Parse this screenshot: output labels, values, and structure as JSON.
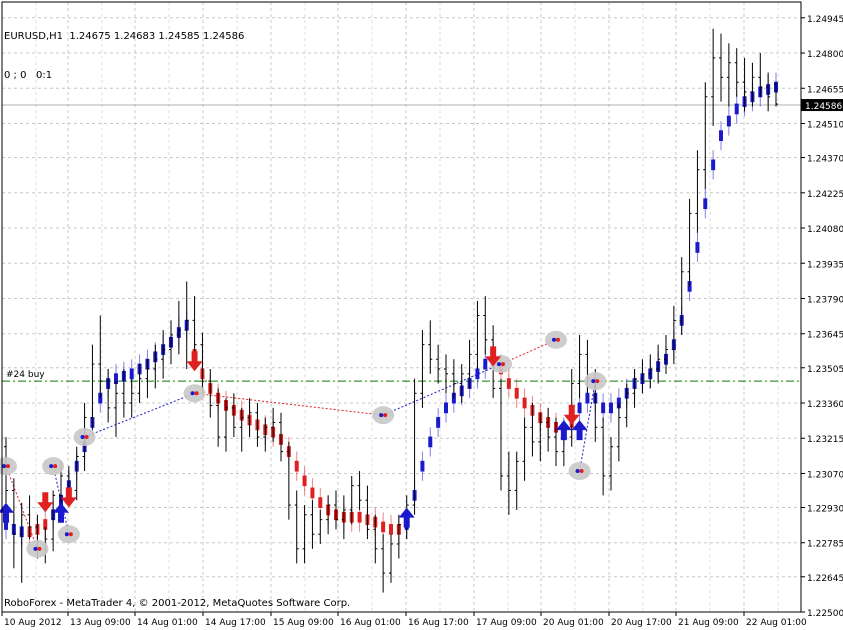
{
  "header": {
    "symbol_line": "EURUSD,H1  1.24675 1.24683 1.24585 1.24586",
    "indicator_line": "0 ; 0   0:1"
  },
  "footer": {
    "copyright": "RoboForex - MetaTrader 4, © 2001-2012, MetaQuotes Software Corp."
  },
  "chart_data": {
    "type": "candlestick-bars",
    "symbol": "EURUSD",
    "timeframe": "H1",
    "ohlc_last": {
      "open": 1.24675,
      "high": 1.24683,
      "low": 1.24585,
      "close": 1.24586
    },
    "current_price": 1.24586,
    "current_price_label": "1.24586",
    "y_ticks": [
      1.24945,
      1.248,
      1.24655,
      1.2451,
      1.2437,
      1.24225,
      1.2408,
      1.23935,
      1.2379,
      1.23645,
      1.23505,
      1.2336,
      1.23215,
      1.2307,
      1.2293,
      1.22785,
      1.22645,
      1.225
    ],
    "y_tick_labels": [
      "1.24945",
      "1.24800",
      "1.24655",
      "1.24510",
      "1.24370",
      "1.24225",
      "1.24080",
      "1.23935",
      "1.23790",
      "1.23645",
      "1.23505",
      "1.23360",
      "1.23215",
      "1.23070",
      "1.22930",
      "1.22785",
      "1.22645",
      "1.22500"
    ],
    "x_tick_labels": [
      "10 Aug 2012",
      "13 Aug 09:00",
      "14 Aug 01:00",
      "14 Aug 17:00",
      "15 Aug 09:00",
      "16 Aug 01:00",
      "16 Aug 17:00",
      "17 Aug 09:00",
      "20 Aug 01:00",
      "20 Aug 17:00",
      "21 Aug 09:00",
      "22 Aug 01:00"
    ],
    "ylim": [
      1.225,
      1.2501
    ],
    "grid": true,
    "order_line": {
      "label": "#24 buy",
      "price": 1.2345,
      "color": "#008000"
    },
    "bar_color": "#000000",
    "up_trend_color": "#1a1acc",
    "down_trend_color": "#e02020",
    "price_series": [
      [
        1.2318,
        1.2322,
        1.229,
        1.23
      ],
      [
        1.23,
        1.2305,
        1.2268,
        1.2282
      ],
      [
        1.2282,
        1.2295,
        1.2262,
        1.229
      ],
      [
        1.229,
        1.2298,
        1.228,
        1.2285
      ],
      [
        1.2285,
        1.229,
        1.2272,
        1.2276
      ],
      [
        1.2276,
        1.2285,
        1.227,
        1.228
      ],
      [
        1.228,
        1.23,
        1.2275,
        1.2298
      ],
      [
        1.2298,
        1.2312,
        1.2292,
        1.2306
      ],
      [
        1.2306,
        1.231,
        1.2294,
        1.23
      ],
      [
        1.23,
        1.2318,
        1.2296,
        1.2314
      ],
      [
        1.2314,
        1.2336,
        1.2308,
        1.233
      ],
      [
        1.233,
        1.236,
        1.2325,
        1.2352
      ],
      [
        1.2352,
        1.2372,
        1.2338,
        1.2345
      ],
      [
        1.2345,
        1.235,
        1.2328,
        1.2334
      ],
      [
        1.2334,
        1.2345,
        1.2322,
        1.234
      ],
      [
        1.234,
        1.235,
        1.233,
        1.2336
      ],
      [
        1.2336,
        1.2346,
        1.233,
        1.234
      ],
      [
        1.234,
        1.2352,
        1.2336,
        1.2346
      ],
      [
        1.2346,
        1.2354,
        1.2338,
        1.235
      ],
      [
        1.235,
        1.236,
        1.2342,
        1.2354
      ],
      [
        1.2354,
        1.2366,
        1.2346,
        1.2358
      ],
      [
        1.2358,
        1.237,
        1.2352,
        1.2364
      ],
      [
        1.2364,
        1.2378,
        1.2356,
        1.2366
      ],
      [
        1.2366,
        1.2386,
        1.235,
        1.237
      ],
      [
        1.237,
        1.238,
        1.2355,
        1.236
      ],
      [
        1.236,
        1.2365,
        1.234,
        1.2345
      ],
      [
        1.2345,
        1.235,
        1.233,
        1.2335
      ],
      [
        1.2335,
        1.2342,
        1.2318,
        1.2322
      ],
      [
        1.2322,
        1.2338,
        1.2316,
        1.2334
      ],
      [
        1.2334,
        1.234,
        1.2322,
        1.2326
      ],
      [
        1.2326,
        1.2334,
        1.2316,
        1.233
      ],
      [
        1.233,
        1.2338,
        1.2322,
        1.2332
      ],
      [
        1.2332,
        1.2336,
        1.2318,
        1.2322
      ],
      [
        1.2322,
        1.233,
        1.2316,
        1.2326
      ],
      [
        1.2326,
        1.2334,
        1.232,
        1.2328
      ],
      [
        1.2328,
        1.2332,
        1.2312,
        1.2316
      ],
      [
        1.2316,
        1.232,
        1.2288,
        1.2294
      ],
      [
        1.2294,
        1.23,
        1.227,
        1.2276
      ],
      [
        1.2276,
        1.2294,
        1.227,
        1.229
      ],
      [
        1.229,
        1.2296,
        1.2276,
        1.2282
      ],
      [
        1.2282,
        1.2292,
        1.2278,
        1.2288
      ],
      [
        1.2288,
        1.2298,
        1.2282,
        1.2294
      ],
      [
        1.2294,
        1.23,
        1.2284,
        1.2288
      ],
      [
        1.2288,
        1.2298,
        1.228,
        1.2292
      ],
      [
        1.2292,
        1.2306,
        1.2286,
        1.2302
      ],
      [
        1.2302,
        1.2308,
        1.2292,
        1.2296
      ],
      [
        1.2296,
        1.2302,
        1.228,
        1.2284
      ],
      [
        1.2284,
        1.229,
        1.227,
        1.2276
      ],
      [
        1.2276,
        1.2282,
        1.2258,
        1.2266
      ],
      [
        1.2266,
        1.2282,
        1.2262,
        1.2278
      ],
      [
        1.2278,
        1.229,
        1.2272,
        1.2286
      ],
      [
        1.2286,
        1.2298,
        1.228,
        1.2294
      ],
      [
        1.2294,
        1.2346,
        1.229,
        1.234
      ],
      [
        1.234,
        1.2366,
        1.2334,
        1.236
      ],
      [
        1.236,
        1.237,
        1.2348,
        1.2354
      ],
      [
        1.2354,
        1.236,
        1.2344,
        1.235
      ],
      [
        1.235,
        1.2356,
        1.234,
        1.2348
      ],
      [
        1.2348,
        1.2354,
        1.2338,
        1.2344
      ],
      [
        1.2344,
        1.2352,
        1.2336,
        1.2348
      ],
      [
        1.2348,
        1.2362,
        1.2342,
        1.2356
      ],
      [
        1.2356,
        1.2378,
        1.235,
        1.2372
      ],
      [
        1.2372,
        1.238,
        1.2356,
        1.2362
      ],
      [
        1.2362,
        1.2368,
        1.2338,
        1.2342
      ],
      [
        1.2342,
        1.2346,
        1.23,
        1.2306
      ],
      [
        1.2306,
        1.2316,
        1.229,
        1.23
      ],
      [
        1.23,
        1.2316,
        1.2292,
        1.2312
      ],
      [
        1.2312,
        1.233,
        1.2304,
        1.2326
      ],
      [
        1.2326,
        1.2336,
        1.2314,
        1.232
      ],
      [
        1.232,
        1.2332,
        1.2312,
        1.2328
      ],
      [
        1.2328,
        1.2334,
        1.2316,
        1.2322
      ],
      [
        1.2322,
        1.233,
        1.231,
        1.2316
      ],
      [
        1.2316,
        1.2326,
        1.231,
        1.2322
      ],
      [
        1.2322,
        1.235,
        1.2318,
        1.2344
      ],
      [
        1.2344,
        1.2364,
        1.2338,
        1.2356
      ],
      [
        1.2356,
        1.2362,
        1.234,
        1.2346
      ],
      [
        1.2346,
        1.235,
        1.232,
        1.2326
      ],
      [
        1.2326,
        1.233,
        1.2298,
        1.2306
      ],
      [
        1.2306,
        1.2322,
        1.23,
        1.2318
      ],
      [
        1.2318,
        1.2336,
        1.2312,
        1.233
      ],
      [
        1.233,
        1.2344,
        1.2326,
        1.234
      ],
      [
        1.234,
        1.235,
        1.2334,
        1.2346
      ],
      [
        1.2346,
        1.2354,
        1.234,
        1.2348
      ],
      [
        1.2348,
        1.2356,
        1.2342,
        1.235
      ],
      [
        1.235,
        1.236,
        1.2344,
        1.2354
      ],
      [
        1.2354,
        1.2364,
        1.2348,
        1.2358
      ],
      [
        1.2358,
        1.2376,
        1.2352,
        1.237
      ],
      [
        1.237,
        1.2396,
        1.2364,
        1.239
      ],
      [
        1.239,
        1.242,
        1.2384,
        1.2414
      ],
      [
        1.2414,
        1.244,
        1.2406,
        1.2432
      ],
      [
        1.2432,
        1.2468,
        1.2424,
        1.2462
      ],
      [
        1.2462,
        1.249,
        1.245,
        1.2478
      ],
      [
        1.2478,
        1.2488,
        1.246,
        1.247
      ],
      [
        1.247,
        1.2484,
        1.2458,
        1.2476
      ],
      [
        1.2476,
        1.2482,
        1.2462,
        1.2468
      ],
      [
        1.2468,
        1.2478,
        1.2456,
        1.2464
      ],
      [
        1.2464,
        1.2476,
        1.2458,
        1.247
      ],
      [
        1.247,
        1.248,
        1.2462,
        1.2466
      ],
      [
        1.2466,
        1.2472,
        1.2456,
        1.2462
      ],
      [
        1.2467,
        1.2468,
        1.2458,
        1.2459
      ]
    ],
    "trend_line": [
      1.2286,
      1.2284,
      1.2283,
      1.2283,
      1.2284,
      1.2286,
      1.229,
      1.2296,
      1.2302,
      1.231,
      1.2318,
      1.2328,
      1.2338,
      1.2344,
      1.2346,
      1.2347,
      1.2348,
      1.235,
      1.2352,
      1.2355,
      1.2358,
      1.2361,
      1.2365,
      1.2368,
      1.2356,
      1.2348,
      1.2342,
      1.2338,
      1.2335,
      1.2333,
      1.2331,
      1.2329,
      1.2327,
      1.2325,
      1.2324,
      1.2321,
      1.2316,
      1.231,
      1.2304,
      1.2299,
      1.2295,
      1.2292,
      1.229,
      1.2289,
      1.2289,
      1.2289,
      1.2288,
      1.2287,
      1.2285,
      1.2284,
      1.2284,
      1.2286,
      1.2298,
      1.231,
      1.232,
      1.2328,
      1.2334,
      1.2338,
      1.2341,
      1.2344,
      1.2348,
      1.2352,
      1.2357,
      1.235,
      1.2344,
      1.234,
      1.2336,
      1.2333,
      1.233,
      1.2328,
      1.2326,
      1.2324,
      1.2328,
      1.2334,
      1.2338,
      1.2338,
      1.2334,
      1.2334,
      1.2336,
      1.234,
      1.2344,
      1.2346,
      1.2348,
      1.2351,
      1.2354,
      1.236,
      1.237,
      1.2384,
      1.24,
      1.2418,
      1.2434,
      1.2446,
      1.2452,
      1.2457,
      1.246,
      1.2462,
      1.2464,
      1.2465,
      1.2466
    ],
    "trend_direction": [
      "up",
      "up",
      "up",
      "down",
      "down",
      "down",
      "up",
      "up",
      "up",
      "up",
      "up",
      "up",
      "up",
      "up",
      "up",
      "up",
      "up",
      "up",
      "up",
      "up",
      "up",
      "up",
      "up",
      "up",
      "down",
      "down",
      "down",
      "down",
      "down",
      "down",
      "down",
      "down",
      "down",
      "down",
      "down",
      "down",
      "down",
      "down",
      "down",
      "down",
      "down",
      "down",
      "down",
      "down",
      "down",
      "down",
      "down",
      "down",
      "down",
      "down",
      "down",
      "up",
      "up",
      "up",
      "up",
      "up",
      "up",
      "up",
      "up",
      "up",
      "up",
      "up",
      "down",
      "down",
      "down",
      "down",
      "down",
      "down",
      "down",
      "down",
      "down",
      "up",
      "down",
      "up",
      "up",
      "up",
      "up",
      "up",
      "up",
      "up",
      "up",
      "up",
      "up",
      "up",
      "up",
      "up",
      "up",
      "up",
      "up",
      "up",
      "up",
      "up",
      "up",
      "up",
      "up",
      "up",
      "up",
      "up",
      "up"
    ],
    "arrows": [
      {
        "bar": 0,
        "dir": "up",
        "price": 1.229
      },
      {
        "bar": 5,
        "dir": "down",
        "price": 1.2296
      },
      {
        "bar": 7,
        "dir": "up",
        "price": 1.229
      },
      {
        "bar": 8,
        "dir": "down",
        "price": 1.2298
      },
      {
        "bar": 24,
        "dir": "down",
        "price": 1.2354
      },
      {
        "bar": 51,
        "dir": "up",
        "price": 1.2288
      },
      {
        "bar": 62,
        "dir": "down",
        "price": 1.2356
      },
      {
        "bar": 71,
        "dir": "up",
        "price": 1.2324
      },
      {
        "bar": 72,
        "dir": "down",
        "price": 1.2332
      },
      {
        "bar": 73,
        "dir": "up",
        "price": 1.2324
      }
    ],
    "trade_markers": [
      {
        "bar": 0,
        "price": 1.231
      },
      {
        "bar": 4,
        "price": 1.2276
      },
      {
        "bar": 6,
        "price": 1.231
      },
      {
        "bar": 8,
        "price": 1.2282
      },
      {
        "bar": 10,
        "price": 1.2322
      },
      {
        "bar": 24,
        "price": 1.234
      },
      {
        "bar": 48,
        "price": 1.2331
      },
      {
        "bar": 63,
        "price": 1.2352
      },
      {
        "bar": 70,
        "price": 1.2362
      },
      {
        "bar": 73,
        "price": 1.2308
      },
      {
        "bar": 75,
        "price": 1.2345
      }
    ],
    "trade_links": [
      {
        "from": 0,
        "to": 1,
        "color": "#e02020"
      },
      {
        "from": 2,
        "to": 3,
        "color": "#1a1acc"
      },
      {
        "from": 4,
        "to": 5,
        "color": "#1a1acc"
      },
      {
        "from": 5,
        "to": 6,
        "color": "#e02020"
      },
      {
        "from": 6,
        "to": 7,
        "color": "#1a1acc"
      },
      {
        "from": 7,
        "to": 8,
        "color": "#e02020"
      },
      {
        "from": 9,
        "to": 10,
        "color": "#1a1acc"
      }
    ]
  }
}
